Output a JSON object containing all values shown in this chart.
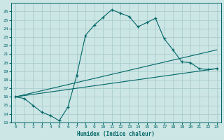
{
  "title": "",
  "xlabel": "Humidex (Indice chaleur)",
  "background_color": "#cce5e5",
  "grid_color": "#aacece",
  "line_color": "#006666",
  "xlim": [
    -0.5,
    23.5
  ],
  "ylim": [
    13,
    27
  ],
  "xticks": [
    0,
    1,
    2,
    3,
    4,
    5,
    6,
    7,
    8,
    9,
    10,
    11,
    12,
    13,
    14,
    15,
    16,
    17,
    18,
    19,
    20,
    21,
    22,
    23
  ],
  "yticks": [
    13,
    14,
    15,
    16,
    17,
    18,
    19,
    20,
    21,
    22,
    23,
    24,
    25,
    26
  ],
  "line1_x": [
    0,
    1,
    2,
    3,
    4,
    5,
    6,
    7,
    8,
    9,
    10,
    11,
    12,
    13,
    14,
    15,
    16,
    17,
    18,
    19,
    20,
    21,
    22,
    23
  ],
  "line1_y": [
    16.0,
    15.8,
    15.0,
    14.2,
    13.8,
    13.2,
    14.8,
    18.5,
    23.2,
    24.4,
    25.3,
    26.2,
    25.8,
    25.4,
    24.2,
    24.7,
    25.2,
    22.8,
    21.5,
    20.1,
    20.0,
    19.3,
    19.2,
    19.3
  ],
  "line2_x": [
    0,
    23
  ],
  "line2_y": [
    16.0,
    21.5
  ],
  "line3_x": [
    0,
    23
  ],
  "line3_y": [
    16.0,
    19.3
  ]
}
